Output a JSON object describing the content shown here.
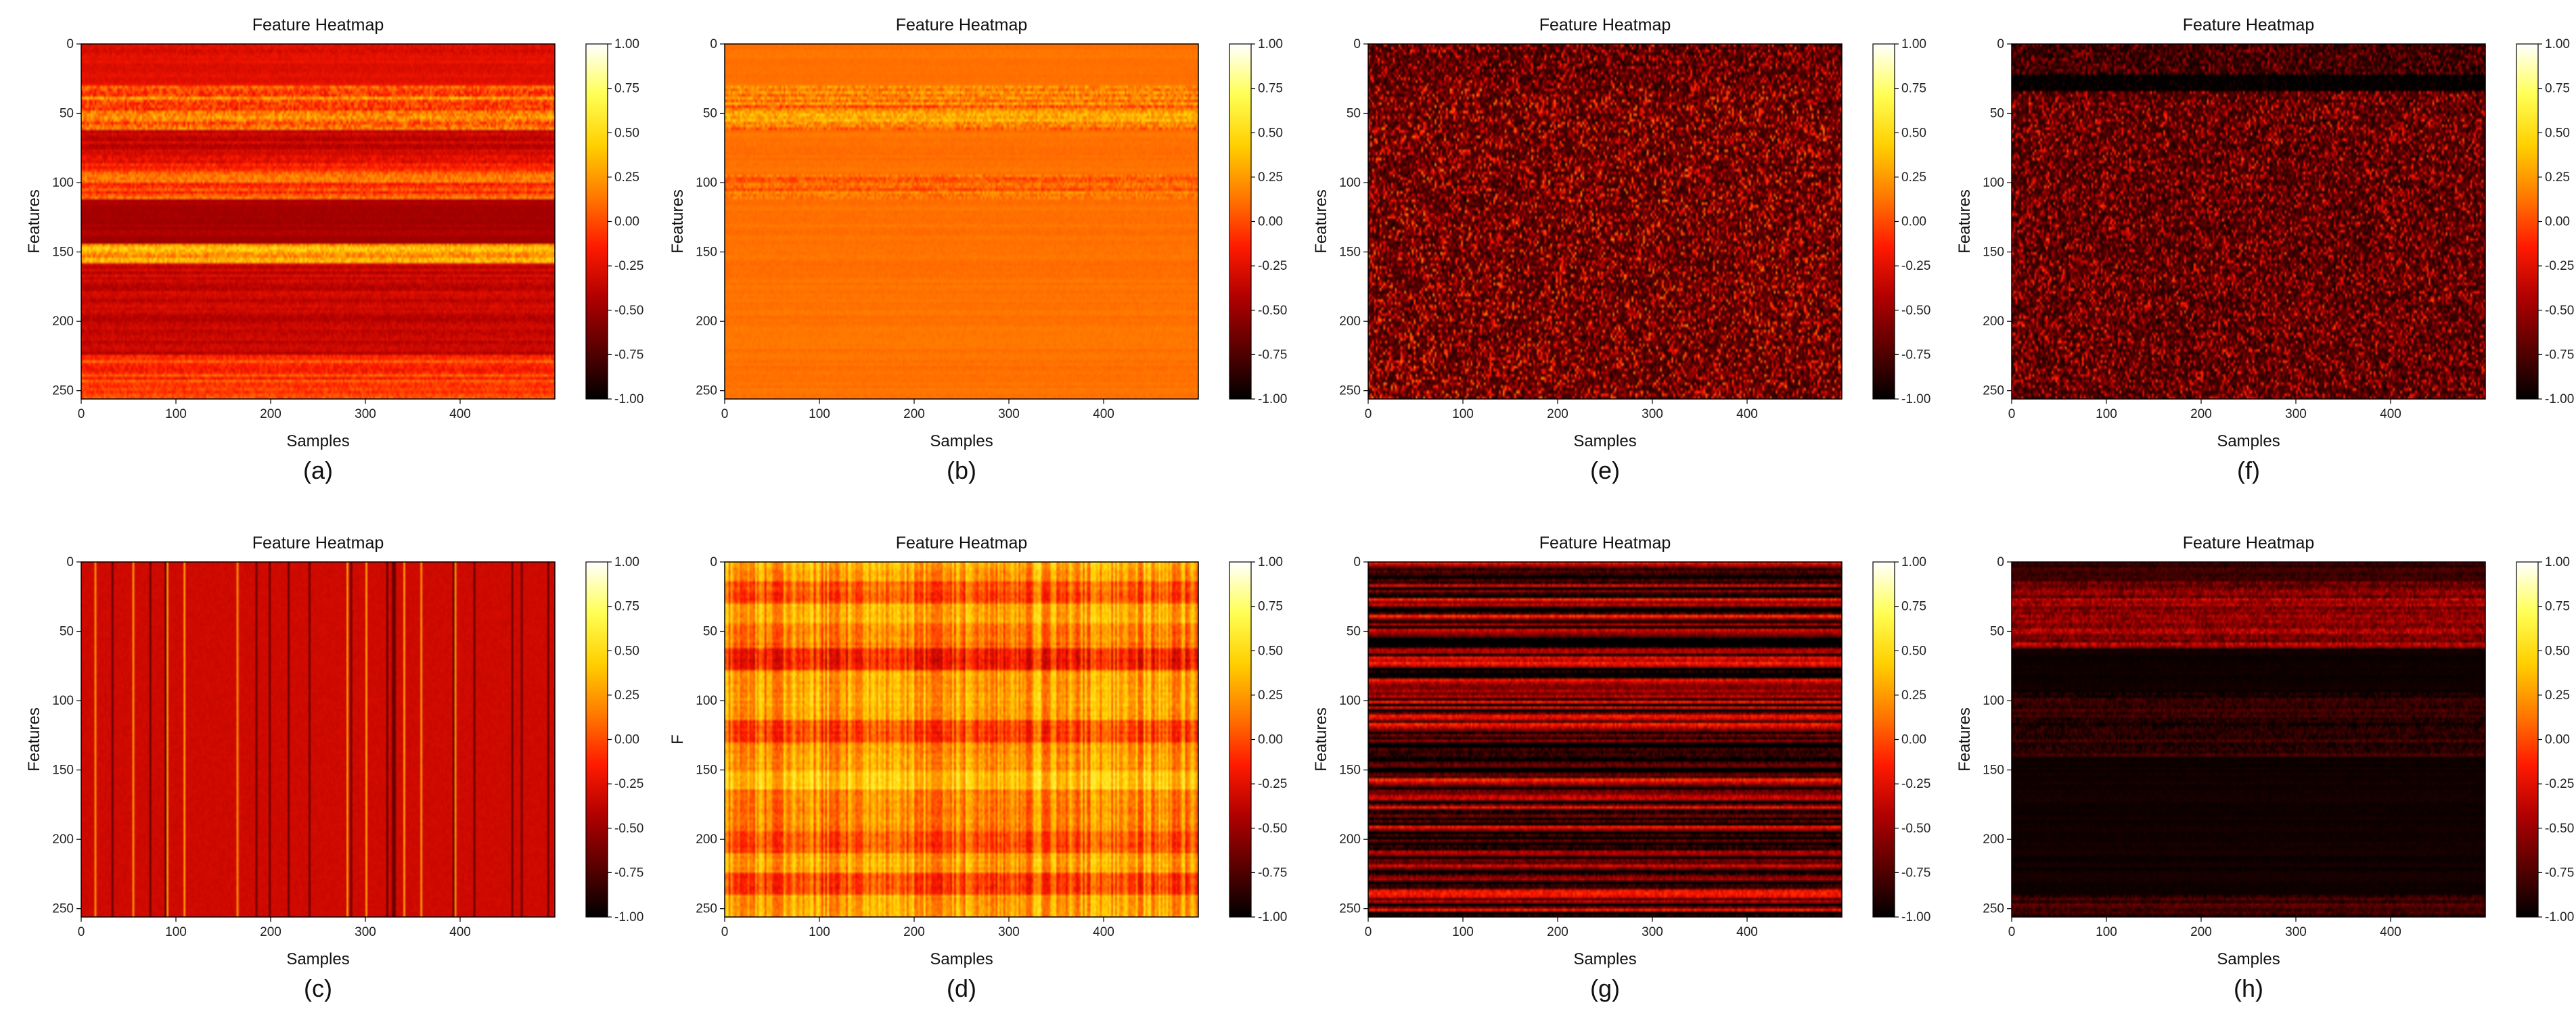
{
  "figure": {
    "colorscale": [
      "#000000",
      "#5a0000",
      "#b00000",
      "#ff1a00",
      "#ff7a00",
      "#ffd000",
      "#ffff55",
      "#ffffff"
    ]
  },
  "chart_data": [
    {
      "type": "heatmap",
      "label": "(a)",
      "title": "Feature Heatmap",
      "xlabel": "Samples",
      "ylabel": "Features",
      "x_ticks": [
        "0",
        "100",
        "200",
        "300",
        "400"
      ],
      "y_ticks": [
        "0",
        "50",
        "100",
        "150",
        "200",
        "250"
      ],
      "xlim": [
        0,
        500
      ],
      "ylim": [
        0,
        256
      ],
      "colorbar": {
        "ticks": [
          "1.00",
          "0.75",
          "0.50",
          "0.25",
          "0.00",
          "-0.25",
          "-0.50",
          "-0.75",
          "-1.00"
        ],
        "range": [
          -1.0,
          1.0
        ]
      },
      "row_profile": [
        {
          "from": 0,
          "to": 8,
          "mean": -0.25,
          "var": 0.12
        },
        {
          "from": 8,
          "to": 30,
          "mean": -0.25,
          "var": 0.08
        },
        {
          "from": 30,
          "to": 62,
          "mean": 0.05,
          "var": 0.35
        },
        {
          "from": 62,
          "to": 80,
          "mean": -0.35,
          "var": 0.12
        },
        {
          "from": 80,
          "to": 92,
          "mean": -0.15,
          "var": 0.2
        },
        {
          "from": 92,
          "to": 112,
          "mean": 0.0,
          "var": 0.25
        },
        {
          "from": 112,
          "to": 145,
          "mean": -0.45,
          "var": 0.06
        },
        {
          "from": 145,
          "to": 158,
          "mean": 0.25,
          "var": 0.3
        },
        {
          "from": 158,
          "to": 225,
          "mean": -0.35,
          "var": 0.12
        },
        {
          "from": 225,
          "to": 256,
          "mean": -0.05,
          "var": 0.2
        }
      ],
      "pattern": "rows"
    },
    {
      "type": "heatmap",
      "label": "(b)",
      "title": "Feature Heatmap",
      "xlabel": "Samples",
      "ylabel": "Features",
      "x_ticks": [
        "0",
        "100",
        "200",
        "300",
        "400"
      ],
      "y_ticks": [
        "0",
        "50",
        "100",
        "150",
        "200",
        "250"
      ],
      "xlim": [
        0,
        500
      ],
      "ylim": [
        0,
        256
      ],
      "colorbar": {
        "ticks": [
          "1.00",
          "0.75",
          "0.50",
          "0.25",
          "0.00",
          "-0.25",
          "-0.50",
          "-0.75",
          "-1.00"
        ],
        "range": [
          -1.0,
          1.0
        ]
      },
      "row_profile": [
        {
          "from": 0,
          "to": 30,
          "mean": 0.12,
          "var": 0.03
        },
        {
          "from": 30,
          "to": 62,
          "mean": 0.18,
          "var": 0.3
        },
        {
          "from": 62,
          "to": 95,
          "mean": 0.12,
          "var": 0.04
        },
        {
          "from": 95,
          "to": 112,
          "mean": 0.08,
          "var": 0.22
        },
        {
          "from": 112,
          "to": 256,
          "mean": 0.12,
          "var": 0.04
        }
      ],
      "pattern": "rows"
    },
    {
      "type": "heatmap",
      "label": "(e)",
      "title": "Feature Heatmap",
      "xlabel": "Samples",
      "ylabel": "Features",
      "x_ticks": [
        "0",
        "100",
        "200",
        "300",
        "400"
      ],
      "y_ticks": [
        "0",
        "50",
        "100",
        "150",
        "200",
        "250"
      ],
      "xlim": [
        0,
        500
      ],
      "ylim": [
        0,
        256
      ],
      "colorbar": {
        "ticks": [
          "1.00",
          "0.75",
          "0.50",
          "0.25",
          "0.00",
          "-0.25",
          "-0.50",
          "-0.75",
          "-1.00"
        ],
        "range": [
          -1.0,
          1.0
        ]
      },
      "row_profile": [
        {
          "from": 0,
          "to": 30,
          "mean": -0.75,
          "var": 0.3
        },
        {
          "from": 30,
          "to": 256,
          "mean": -0.72,
          "var": 0.35
        }
      ],
      "pattern": "noise"
    },
    {
      "type": "heatmap",
      "label": "(f)",
      "title": "Feature Heatmap",
      "xlabel": "Samples",
      "ylabel": "Features",
      "x_ticks": [
        "0",
        "100",
        "200",
        "300",
        "400"
      ],
      "y_ticks": [
        "0",
        "50",
        "100",
        "150",
        "200",
        "250"
      ],
      "xlim": [
        0,
        500
      ],
      "ylim": [
        0,
        256
      ],
      "colorbar": {
        "ticks": [
          "1.00",
          "0.75",
          "0.50",
          "0.25",
          "0.00",
          "-0.25",
          "-0.50",
          "-0.75",
          "-1.00"
        ],
        "range": [
          -1.0,
          1.0
        ]
      },
      "row_profile": [
        {
          "from": 0,
          "to": 22,
          "mean": -0.8,
          "var": 0.2
        },
        {
          "from": 22,
          "to": 34,
          "mean": -0.95,
          "var": 0.05
        },
        {
          "from": 34,
          "to": 256,
          "mean": -0.75,
          "var": 0.3
        }
      ],
      "pattern": "noise"
    },
    {
      "type": "heatmap",
      "label": "(c)",
      "title": "Feature Heatmap",
      "xlabel": "Samples",
      "ylabel": "Features",
      "x_ticks": [
        "0",
        "100",
        "200",
        "300",
        "400"
      ],
      "y_ticks": [
        "0",
        "50",
        "100",
        "150",
        "200",
        "250"
      ],
      "xlim": [
        0,
        500
      ],
      "ylim": [
        0,
        256
      ],
      "colorbar": {
        "ticks": [
          "1.00",
          "0.75",
          "0.50",
          "0.25",
          "0.00",
          "-0.25",
          "-0.50",
          "-0.75",
          "-1.00"
        ],
        "range": [
          -1.0,
          1.0
        ]
      },
      "row_profile": [
        {
          "from": 0,
          "to": 256,
          "mean": -0.32,
          "var": 0.05
        }
      ],
      "pattern": "columns"
    },
    {
      "type": "heatmap",
      "label": "(d)",
      "title": "Feature Heatmap",
      "xlabel": "Samples",
      "ylabel": "F",
      "x_ticks": [
        "0",
        "100",
        "200",
        "300",
        "400"
      ],
      "y_ticks": [
        "0",
        "50",
        "100",
        "150",
        "200",
        "250"
      ],
      "xlim": [
        0,
        500
      ],
      "ylim": [
        0,
        256
      ],
      "colorbar": {
        "ticks": [
          "1.00",
          "0.75",
          "0.50",
          "0.25",
          "0.00",
          "-0.25",
          "-0.50",
          "-0.75",
          "-1.00"
        ],
        "range": [
          -1.0,
          1.0
        ]
      },
      "row_profile": [
        {
          "from": 0,
          "to": 15,
          "mean": 0.3,
          "var": 0.15
        },
        {
          "from": 15,
          "to": 30,
          "mean": 0.05,
          "var": 0.15
        },
        {
          "from": 30,
          "to": 45,
          "mean": 0.32,
          "var": 0.15
        },
        {
          "from": 45,
          "to": 62,
          "mean": 0.15,
          "var": 0.15
        },
        {
          "from": 62,
          "to": 78,
          "mean": -0.15,
          "var": 0.15
        },
        {
          "from": 78,
          "to": 115,
          "mean": 0.3,
          "var": 0.15
        },
        {
          "from": 115,
          "to": 130,
          "mean": 0.0,
          "var": 0.15
        },
        {
          "from": 130,
          "to": 150,
          "mean": 0.25,
          "var": 0.15
        },
        {
          "from": 150,
          "to": 165,
          "mean": 0.4,
          "var": 0.12
        },
        {
          "from": 165,
          "to": 195,
          "mean": 0.2,
          "var": 0.15
        },
        {
          "from": 195,
          "to": 210,
          "mean": 0.05,
          "var": 0.15
        },
        {
          "from": 210,
          "to": 225,
          "mean": 0.3,
          "var": 0.15
        },
        {
          "from": 225,
          "to": 240,
          "mean": 0.0,
          "var": 0.15
        },
        {
          "from": 240,
          "to": 256,
          "mean": 0.3,
          "var": 0.15
        }
      ],
      "pattern": "rows_columns"
    },
    {
      "type": "heatmap",
      "label": "(g)",
      "title": "Feature Heatmap",
      "xlabel": "Samples",
      "ylabel": "Features",
      "x_ticks": [
        "0",
        "100",
        "200",
        "300",
        "400"
      ],
      "y_ticks": [
        "0",
        "50",
        "100",
        "150",
        "200",
        "250"
      ],
      "xlim": [
        0,
        500
      ],
      "ylim": [
        0,
        256
      ],
      "colorbar": {
        "ticks": [
          "1.00",
          "0.75",
          "0.50",
          "0.25",
          "0.00",
          "-0.25",
          "-0.50",
          "-0.75",
          "-1.00"
        ],
        "range": [
          -1.0,
          1.0
        ]
      },
      "row_profile": [
        {
          "from": 0,
          "to": 256,
          "mean": -0.65,
          "var": 0.35
        }
      ],
      "pattern": "stripes"
    },
    {
      "type": "heatmap",
      "label": "(h)",
      "title": "Feature Heatmap",
      "xlabel": "Samples",
      "ylabel": "Features",
      "x_ticks": [
        "0",
        "100",
        "200",
        "300",
        "400"
      ],
      "y_ticks": [
        "0",
        "50",
        "100",
        "150",
        "200",
        "250"
      ],
      "xlim": [
        0,
        500
      ],
      "ylim": [
        0,
        256
      ],
      "colorbar": {
        "ticks": [
          "1.00",
          "0.75",
          "0.50",
          "0.25",
          "0.00",
          "-0.25",
          "-0.50",
          "-0.75",
          "-1.00"
        ],
        "range": [
          -1.0,
          1.0
        ]
      },
      "row_profile": [
        {
          "from": 0,
          "to": 15,
          "mean": -0.85,
          "var": 0.15
        },
        {
          "from": 15,
          "to": 62,
          "mean": -0.55,
          "var": 0.35
        },
        {
          "from": 62,
          "to": 95,
          "mean": -0.95,
          "var": 0.04
        },
        {
          "from": 95,
          "to": 140,
          "mean": -0.85,
          "var": 0.2
        },
        {
          "from": 140,
          "to": 240,
          "mean": -0.95,
          "var": 0.04
        },
        {
          "from": 240,
          "to": 256,
          "mean": -0.8,
          "var": 0.2
        }
      ],
      "pattern": "rows"
    }
  ]
}
